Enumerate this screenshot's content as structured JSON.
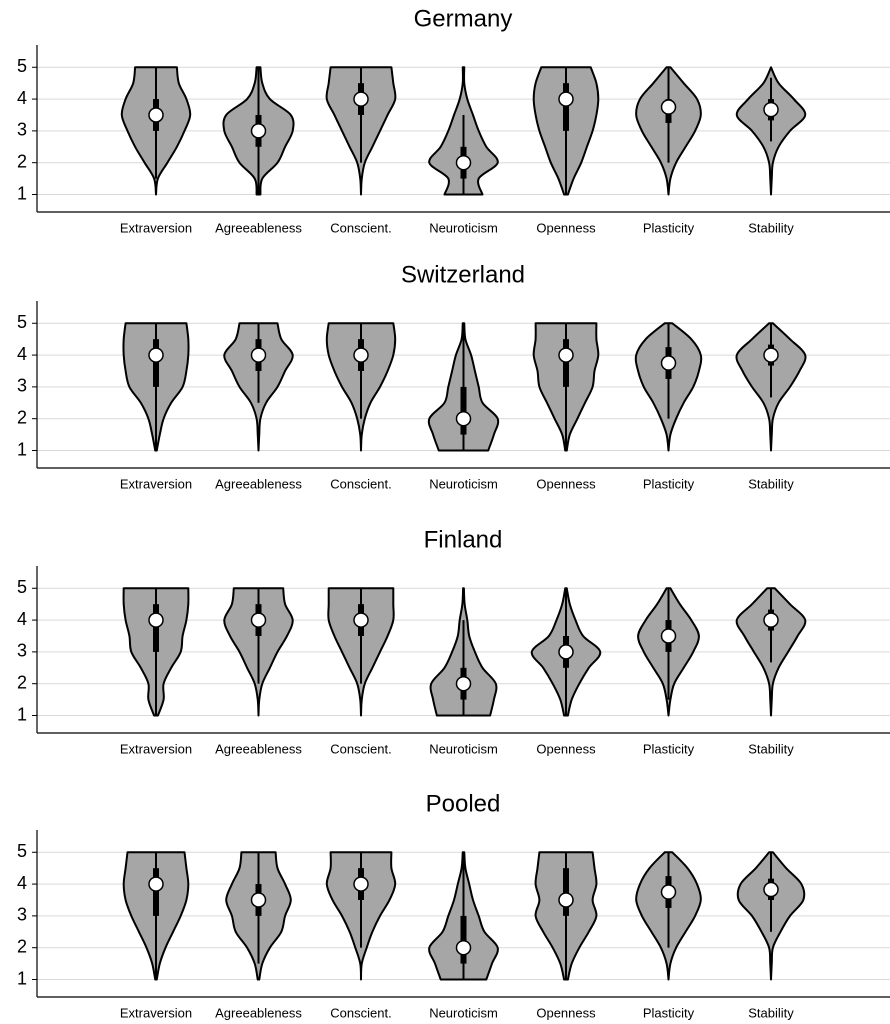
{
  "chart_data": [
    {
      "type": "violin",
      "title": "Germany",
      "categories": [
        "Extraversion",
        "Agreeableness",
        "Conscient.",
        "Neuroticism",
        "Openness",
        "Plasticity",
        "Stability"
      ],
      "ylim": [
        0.45,
        5.7
      ],
      "yticks": [
        1,
        2,
        3,
        4,
        5
      ],
      "grid": true,
      "color": "#a6a6a6",
      "density_y": [
        1,
        1.5,
        2,
        2.5,
        3,
        3.5,
        4,
        4.5,
        5
      ],
      "violins": [
        {
          "density": [
            0,
            0.05,
            0.3,
            0.55,
            0.75,
            0.9,
            0.8,
            0.6,
            0.55
          ],
          "median": 3.5,
          "q1": 3,
          "q3": 4,
          "low": 1.5,
          "high": 5
        },
        {
          "density": [
            0.05,
            0.1,
            0.5,
            0.7,
            0.9,
            0.85,
            0.3,
            0.1,
            0.05
          ],
          "median": 3,
          "q1": 2.5,
          "q3": 3.5,
          "low": 1,
          "high": 5
        },
        {
          "density": [
            0,
            0.02,
            0.1,
            0.3,
            0.5,
            0.7,
            0.9,
            0.85,
            0.8
          ],
          "median": 4,
          "q1": 3.5,
          "q3": 4.5,
          "low": 2,
          "high": 5
        },
        {
          "density": [
            0.5,
            0.4,
            0.9,
            0.6,
            0.4,
            0.25,
            0.1,
            0.02,
            0.02
          ],
          "median": 2,
          "q1": 1.5,
          "q3": 2.5,
          "low": 1,
          "high": 3.5
        },
        {
          "density": [
            0.05,
            0.2,
            0.4,
            0.55,
            0.7,
            0.8,
            0.85,
            0.8,
            0.65
          ],
          "median": 4,
          "q1": 3,
          "q3": 4.5,
          "low": 1,
          "high": 5
        },
        {
          "density": [
            0,
            0.05,
            0.2,
            0.45,
            0.7,
            0.85,
            0.75,
            0.4,
            0.05
          ],
          "median": 3.75,
          "q1": 3.25,
          "q3": 4,
          "low": 2,
          "high": 5
        },
        {
          "density": [
            0,
            0.02,
            0.05,
            0.2,
            0.5,
            0.9,
            0.6,
            0.2,
            0
          ],
          "median": 3.67,
          "q1": 3.33,
          "q3": 4,
          "low": 2.67,
          "high": 4.67
        }
      ]
    },
    {
      "type": "violin",
      "title": "Switzerland",
      "categories": [
        "Extraversion",
        "Agreeableness",
        "Conscient.",
        "Neuroticism",
        "Openness",
        "Plasticity",
        "Stability"
      ],
      "ylim": [
        0.45,
        5.7
      ],
      "yticks": [
        1,
        2,
        3,
        4,
        5
      ],
      "grid": true,
      "color": "#a6a6a6",
      "density_y": [
        1,
        1.5,
        2,
        2.5,
        3,
        3.5,
        4,
        4.5,
        5
      ],
      "violins": [
        {
          "density": [
            0.02,
            0.1,
            0.2,
            0.4,
            0.7,
            0.8,
            0.85,
            0.85,
            0.8
          ],
          "median": 4,
          "q1": 3,
          "q3": 4.5,
          "low": 1,
          "high": 5
        },
        {
          "density": [
            0,
            0.02,
            0.05,
            0.2,
            0.5,
            0.7,
            0.9,
            0.6,
            0.5
          ],
          "median": 4,
          "q1": 3.5,
          "q3": 4.5,
          "low": 2.5,
          "high": 5
        },
        {
          "density": [
            0,
            0.02,
            0.1,
            0.25,
            0.5,
            0.7,
            0.85,
            0.9,
            0.85
          ],
          "median": 4,
          "q1": 3.5,
          "q3": 4.5,
          "low": 2,
          "high": 5
        },
        {
          "density": [
            0.65,
            0.8,
            0.9,
            0.5,
            0.4,
            0.3,
            0.2,
            0.05,
            0.02
          ],
          "median": 2,
          "q1": 1.5,
          "q3": 3,
          "low": 1,
          "high": 5
        },
        {
          "density": [
            0.02,
            0.1,
            0.3,
            0.5,
            0.7,
            0.75,
            0.85,
            0.8,
            0.8
          ],
          "median": 4,
          "q1": 3,
          "q3": 4.5,
          "low": 1,
          "high": 5
        },
        {
          "density": [
            0,
            0.05,
            0.2,
            0.4,
            0.65,
            0.8,
            0.85,
            0.6,
            0.1
          ],
          "median": 3.75,
          "q1": 3.25,
          "q3": 4.25,
          "low": 2,
          "high": 5
        },
        {
          "density": [
            0,
            0.02,
            0.05,
            0.2,
            0.5,
            0.75,
            0.9,
            0.5,
            0.05
          ],
          "median": 4,
          "q1": 3.67,
          "q3": 4.33,
          "low": 2.67,
          "high": 5
        }
      ]
    },
    {
      "type": "violin",
      "title": "Finland",
      "categories": [
        "Extraversion",
        "Agreeableness",
        "Conscient.",
        "Neuroticism",
        "Openness",
        "Plasticity",
        "Stability"
      ],
      "ylim": [
        0.45,
        5.7
      ],
      "yticks": [
        1,
        2,
        3,
        4,
        5
      ],
      "grid": true,
      "color": "#a6a6a6",
      "density_y": [
        1,
        1.5,
        2,
        2.5,
        3,
        3.5,
        4,
        4.5,
        5
      ],
      "violins": [
        {
          "density": [
            0.05,
            0.2,
            0.2,
            0.4,
            0.65,
            0.7,
            0.8,
            0.85,
            0.85
          ],
          "median": 4,
          "q1": 3,
          "q3": 4.5,
          "low": 1,
          "high": 5
        },
        {
          "density": [
            0,
            0.02,
            0.1,
            0.3,
            0.5,
            0.75,
            0.9,
            0.7,
            0.65
          ],
          "median": 4,
          "q1": 3.5,
          "q3": 4.5,
          "low": 2,
          "high": 5
        },
        {
          "density": [
            0,
            0.02,
            0.1,
            0.3,
            0.5,
            0.7,
            0.85,
            0.85,
            0.85
          ],
          "median": 4,
          "q1": 3.5,
          "q3": 4.5,
          "low": 2,
          "high": 5
        },
        {
          "density": [
            0.7,
            0.8,
            0.85,
            0.5,
            0.3,
            0.15,
            0.1,
            0.03,
            0.01
          ],
          "median": 2,
          "q1": 1.5,
          "q3": 2.5,
          "low": 1,
          "high": 4
        },
        {
          "density": [
            0.05,
            0.15,
            0.35,
            0.6,
            0.9,
            0.45,
            0.25,
            0.1,
            0.02
          ],
          "median": 3,
          "q1": 2.5,
          "q3": 3.5,
          "low": 1,
          "high": 5
        },
        {
          "density": [
            0,
            0.05,
            0.15,
            0.4,
            0.65,
            0.8,
            0.6,
            0.3,
            0.05
          ],
          "median": 3.5,
          "q1": 3,
          "q3": 4,
          "low": 1.5,
          "high": 5
        },
        {
          "density": [
            0,
            0.02,
            0.05,
            0.2,
            0.45,
            0.7,
            0.9,
            0.5,
            0.1
          ],
          "median": 4,
          "q1": 3.67,
          "q3": 4.33,
          "low": 2.67,
          "high": 5
        }
      ]
    },
    {
      "type": "violin",
      "title": "Pooled",
      "categories": [
        "Extraversion",
        "Agreeableness",
        "Conscient.",
        "Neuroticism",
        "Openness",
        "Plasticity",
        "Stability"
      ],
      "ylim": [
        0.45,
        5.7
      ],
      "yticks": [
        1,
        2,
        3,
        4,
        5
      ],
      "grid": true,
      "color": "#a6a6a6",
      "density_y": [
        1,
        1.5,
        2,
        2.5,
        3,
        3.5,
        4,
        4.5,
        5
      ],
      "violins": [
        {
          "density": [
            0.02,
            0.1,
            0.25,
            0.45,
            0.65,
            0.8,
            0.85,
            0.8,
            0.75
          ],
          "median": 4,
          "q1": 3,
          "q3": 4.5,
          "low": 1,
          "high": 5
        },
        {
          "density": [
            0.02,
            0.1,
            0.3,
            0.6,
            0.7,
            0.85,
            0.7,
            0.5,
            0.45
          ],
          "median": 3.5,
          "q1": 3,
          "q3": 4,
          "low": 1.5,
          "high": 5
        },
        {
          "density": [
            0,
            0.02,
            0.15,
            0.3,
            0.5,
            0.75,
            0.9,
            0.8,
            0.8
          ],
          "median": 4,
          "q1": 3.5,
          "q3": 4.5,
          "low": 2,
          "high": 5
        },
        {
          "density": [
            0.6,
            0.75,
            0.9,
            0.55,
            0.4,
            0.25,
            0.15,
            0.05,
            0.02
          ],
          "median": 2,
          "q1": 1.5,
          "q3": 3,
          "low": 1,
          "high": 5
        },
        {
          "density": [
            0.05,
            0.15,
            0.35,
            0.6,
            0.8,
            0.7,
            0.8,
            0.75,
            0.7
          ],
          "median": 3.5,
          "q1": 3,
          "q3": 4.5,
          "low": 1,
          "high": 5
        },
        {
          "density": [
            0,
            0.05,
            0.2,
            0.45,
            0.7,
            0.85,
            0.75,
            0.5,
            0.1
          ],
          "median": 3.75,
          "q1": 3.25,
          "q3": 4.25,
          "low": 2,
          "high": 5
        },
        {
          "density": [
            0,
            0.02,
            0.05,
            0.25,
            0.5,
            0.85,
            0.8,
            0.4,
            0.05
          ],
          "median": 3.83,
          "q1": 3.5,
          "q3": 4.17,
          "low": 2.5,
          "high": 5
        }
      ]
    }
  ]
}
